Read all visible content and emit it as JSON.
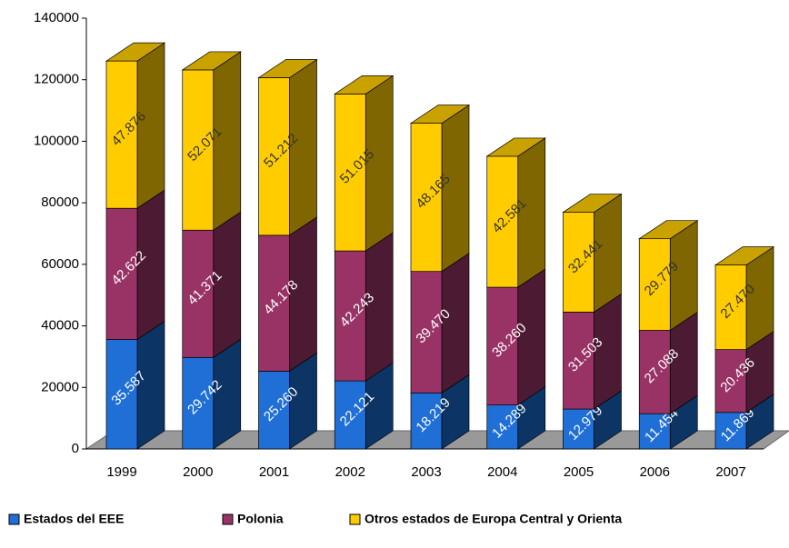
{
  "chart_data": {
    "type": "bar3d-stacked",
    "categories": [
      "1999",
      "2000",
      "2001",
      "2002",
      "2003",
      "2004",
      "2005",
      "2006",
      "2007"
    ],
    "series": [
      {
        "name": "Estados del EEE",
        "color": "#1f6fd6",
        "side": "#0c3566",
        "top": "#2f7fe6",
        "label_color": "#ffffff",
        "values": [
          35587,
          29742,
          25260,
          22121,
          18219,
          14289,
          12979,
          11454,
          11869
        ],
        "value_labels": [
          "35.587",
          "29.742",
          "25.260",
          "22.121",
          "18.219",
          "14.289",
          "12.979",
          "11.454",
          "11.869"
        ]
      },
      {
        "name": "Polonia",
        "color": "#993366",
        "side": "#4d1a33",
        "top": "#7a2952",
        "label_color": "#ffffff",
        "values": [
          42622,
          41371,
          44178,
          42243,
          39470,
          38260,
          31503,
          27088,
          20436
        ],
        "value_labels": [
          "42.622",
          "41.371",
          "44.178",
          "42.243",
          "39.470",
          "38.260",
          "31.503",
          "27.088",
          "20.436"
        ]
      },
      {
        "name": "Otros estados de Europa Central y Orienta",
        "color": "#ffcc00",
        "side": "#806600",
        "top": "#c9a200",
        "label_color": "#333333",
        "values": [
          47876,
          52071,
          51212,
          51015,
          48165,
          42581,
          32441,
          29779,
          27470
        ],
        "value_labels": [
          "47.876",
          "52.071",
          "51.212",
          "51.015",
          "48.165",
          "42.581",
          "32.441",
          "29.779",
          "27.470"
        ]
      }
    ],
    "ylim": [
      0,
      140000
    ],
    "yticks": [
      0,
      20000,
      40000,
      60000,
      80000,
      100000,
      120000,
      140000
    ]
  }
}
